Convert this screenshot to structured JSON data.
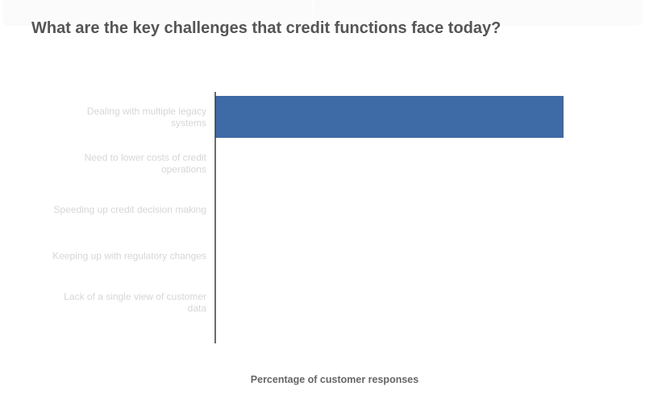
{
  "chart_data": {
    "type": "bar",
    "orientation": "horizontal",
    "title": "What are the key challenges that credit functions face today?",
    "xlabel": "Percentage of customer responses",
    "ylabel": "",
    "categories": [
      "Dealing with multiple legacy systems",
      "Need to lower costs of credit operations",
      "Speeding up credit decision making",
      "Keeping up with regulatory changes",
      "Lack of a single view of customer data"
    ],
    "values": [
      100,
      null,
      null,
      null,
      null
    ],
    "xlim": [
      0,
      100
    ],
    "grid": false,
    "legend": "none",
    "bar_color": "#3e6aa6"
  }
}
